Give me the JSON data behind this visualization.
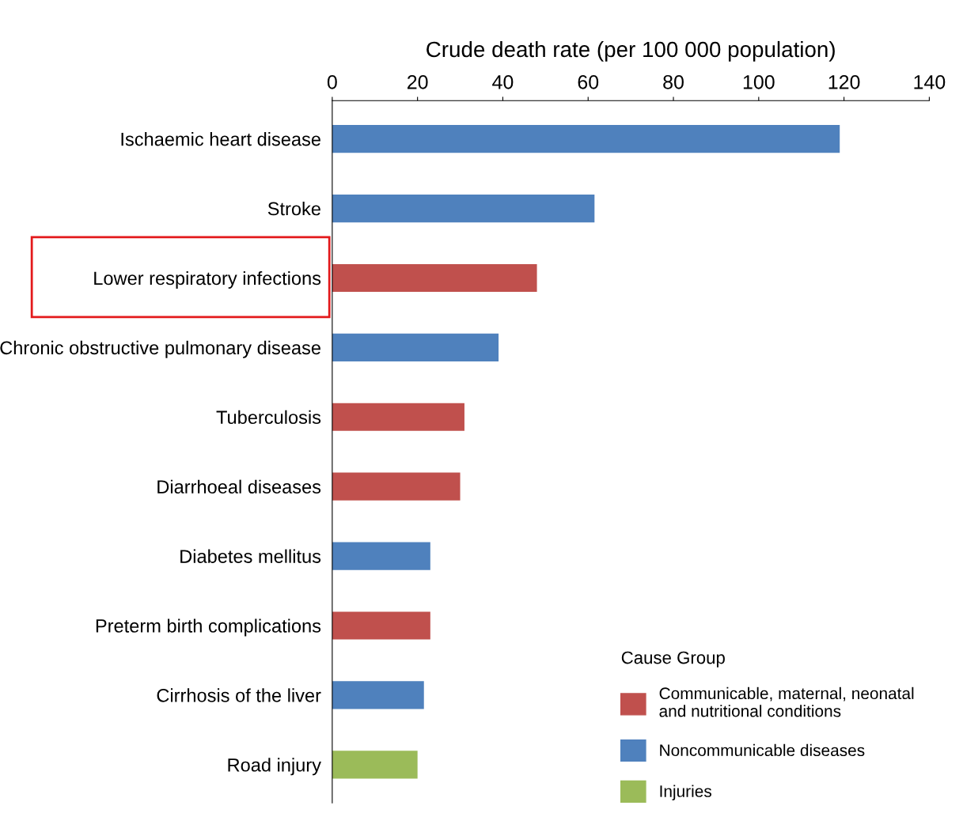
{
  "chart_data": {
    "type": "bar",
    "orientation": "horizontal",
    "xlabel": "Crude death rate (per 100 000 population)",
    "categories": [
      "Ischaemic heart disease",
      "Stroke",
      "Lower respiratory infections",
      "Chronic obstructive pulmonary disease",
      "Tuberculosis",
      "Diarrhoeal diseases",
      "Diabetes mellitus",
      "Preterm birth complications",
      "Cirrhosis of the liver",
      "Road injury"
    ],
    "series": [
      {
        "name": "Communicable, maternal, neonatal\nand nutritional conditions",
        "color": "#c0504d",
        "values": [
          null,
          null,
          48,
          null,
          31,
          30,
          null,
          23,
          null,
          null
        ]
      },
      {
        "name": "Noncommunicable diseases",
        "color": "#4f81bd",
        "values": [
          119,
          61.5,
          null,
          39,
          null,
          null,
          23,
          null,
          21.5,
          null
        ]
      },
      {
        "name": "Injuries",
        "color": "#9bbb59",
        "values": [
          null,
          null,
          null,
          null,
          null,
          null,
          null,
          null,
          null,
          20
        ]
      }
    ],
    "legend_title": "Cause Group",
    "legend": "bottom right",
    "xlim": [
      0,
      140
    ],
    "xticks": [
      0,
      20,
      40,
      60,
      80,
      100,
      120,
      140
    ],
    "grid": false
  }
}
